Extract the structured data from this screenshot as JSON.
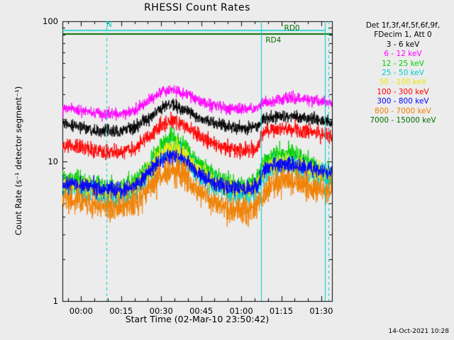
{
  "title": "RHESSI Count Rates",
  "footer": {
    "timestamp": "14-Oct-2021 10:28"
  },
  "axes": {
    "x_label": "Start Time (02-Mar-10 23:50:42)",
    "y_label": "Count Rate (s⁻¹ detector segment⁻¹)",
    "x_ticks": [
      {
        "label": "00:00",
        "t": 0
      },
      {
        "label": "00:15",
        "t": 15
      },
      {
        "label": "00:30",
        "t": 30
      },
      {
        "label": "00:45",
        "t": 45
      },
      {
        "label": "01:00",
        "t": 60
      },
      {
        "label": "01:15",
        "t": 75
      },
      {
        "label": "01:30",
        "t": 90
      }
    ],
    "y_ticks": [
      {
        "label": "1",
        "v": 1
      },
      {
        "label": "10",
        "v": 10
      },
      {
        "label": "100",
        "v": 100
      }
    ]
  },
  "legend": {
    "header": [
      "Det 1f,3f,4f,5f,6f,9f,",
      "FDecim 1, Att 0"
    ],
    "entries": [
      {
        "label": "3 - 6 keV",
        "color": "#000000"
      },
      {
        "label": "6 - 12 keV",
        "color": "#ff00ff"
      },
      {
        "label": "12 - 25 keV",
        "color": "#00d000"
      },
      {
        "label": "25 - 50 keV",
        "color": "#00cccc"
      },
      {
        "label": "50 - 100 keV",
        "color": "#e8e800"
      },
      {
        "label": "100 - 300 keV",
        "color": "#ff0000"
      },
      {
        "label": "300 - 800 keV",
        "color": "#0000ff"
      },
      {
        "label": "800 - 7000 keV",
        "color": "#f08000"
      },
      {
        "label": "7000 - 15000 keV",
        "color": "#006f00"
      }
    ]
  },
  "chart_data": {
    "type": "line",
    "title": "RHESSI Count Rates",
    "xlabel": "Start Time (02-Mar-10 23:50:42)",
    "ylabel": "Count Rate (s⁻¹ detector segment⁻¹)",
    "x_unit": "minutes relative to 00:00 UT",
    "x_range": [
      -7,
      94
    ],
    "y_range": [
      1,
      100
    ],
    "y_scale": "log",
    "grid": false,
    "legend_position": "right",
    "series": [
      {
        "name": "3 - 6 keV",
        "color": "#000000",
        "sigma": 0.05,
        "width": 1,
        "trend": [
          [
            -7,
            18.5
          ],
          [
            0,
            17.5
          ],
          [
            8,
            16.4
          ],
          [
            14,
            16.2
          ],
          [
            20,
            17.4
          ],
          [
            26,
            20.5
          ],
          [
            31,
            24.5
          ],
          [
            34,
            25.5
          ],
          [
            38,
            23.5
          ],
          [
            44,
            20.5
          ],
          [
            50,
            18.5
          ],
          [
            56,
            17.4
          ],
          [
            62,
            17.2
          ],
          [
            66,
            17.8
          ],
          [
            68.5,
            19.8
          ],
          [
            72,
            20.6
          ],
          [
            78,
            21
          ],
          [
            84,
            20.3
          ],
          [
            90,
            19.4
          ],
          [
            94,
            19
          ]
        ]
      },
      {
        "name": "6 - 12 keV",
        "color": "#ff00ff",
        "sigma": 0.045,
        "width": 1,
        "trend": [
          [
            -7,
            23.5
          ],
          [
            0,
            23
          ],
          [
            8,
            21.8
          ],
          [
            14,
            21.6
          ],
          [
            20,
            23
          ],
          [
            26,
            27.5
          ],
          [
            31,
            31.5
          ],
          [
            34,
            32.5
          ],
          [
            38,
            30.5
          ],
          [
            44,
            27.2
          ],
          [
            50,
            25
          ],
          [
            56,
            23.6
          ],
          [
            62,
            23.4
          ],
          [
            66,
            24
          ],
          [
            68.5,
            26
          ],
          [
            72,
            27.2
          ],
          [
            78,
            28.2
          ],
          [
            84,
            27.6
          ],
          [
            90,
            26.6
          ],
          [
            94,
            26.2
          ]
        ]
      },
      {
        "name": "12 - 25 keV",
        "color": "#00d000",
        "sigma": 0.075,
        "width": 1,
        "trend": [
          [
            -7,
            7.4
          ],
          [
            0,
            7.1
          ],
          [
            8,
            6.6
          ],
          [
            14,
            6.5
          ],
          [
            20,
            7
          ],
          [
            26,
            9.8
          ],
          [
            31,
            13.5
          ],
          [
            34,
            15
          ],
          [
            38,
            13.2
          ],
          [
            44,
            9.6
          ],
          [
            50,
            7.8
          ],
          [
            56,
            6.9
          ],
          [
            62,
            6.8
          ],
          [
            66,
            7.2
          ],
          [
            68.5,
            9.8
          ],
          [
            72,
            11
          ],
          [
            78,
            11.6
          ],
          [
            84,
            10.4
          ],
          [
            90,
            8.6
          ],
          [
            94,
            8.1
          ]
        ]
      },
      {
        "name": "25 - 50 keV",
        "color": "#00cccc",
        "sigma": 0.09,
        "width": 1,
        "trend": [
          [
            -7,
            6.4
          ],
          [
            0,
            6.2
          ],
          [
            8,
            5.8
          ],
          [
            14,
            5.7
          ],
          [
            20,
            6.1
          ],
          [
            26,
            8.4
          ],
          [
            31,
            11
          ],
          [
            34,
            12
          ],
          [
            38,
            10.8
          ],
          [
            44,
            8
          ],
          [
            50,
            6.6
          ],
          [
            56,
            6
          ],
          [
            62,
            5.9
          ],
          [
            66,
            6.2
          ],
          [
            68.5,
            8
          ],
          [
            72,
            8.9
          ],
          [
            78,
            9.3
          ],
          [
            84,
            8.7
          ],
          [
            90,
            7.9
          ],
          [
            94,
            7.5
          ]
        ]
      },
      {
        "name": "50 - 100 keV",
        "color": "#e8e800",
        "sigma": 0.07,
        "width": 1,
        "trend": [
          [
            -7,
            6.9
          ],
          [
            0,
            6.7
          ],
          [
            8,
            6.2
          ],
          [
            14,
            6.1
          ],
          [
            20,
            6.5
          ],
          [
            26,
            8.9
          ],
          [
            31,
            11.6
          ],
          [
            34,
            12.6
          ],
          [
            38,
            11.4
          ],
          [
            44,
            8.5
          ],
          [
            50,
            7
          ],
          [
            56,
            6.4
          ],
          [
            62,
            6.3
          ],
          [
            66,
            6.7
          ],
          [
            68.5,
            8.4
          ],
          [
            72,
            9.3
          ],
          [
            78,
            9.7
          ],
          [
            84,
            9.1
          ],
          [
            90,
            8.3
          ],
          [
            94,
            7.9
          ]
        ]
      },
      {
        "name": "100 - 300 keV",
        "color": "#ff0000",
        "sigma": 0.06,
        "width": 1,
        "trend": [
          [
            -7,
            13
          ],
          [
            0,
            12.6
          ],
          [
            8,
            11.7
          ],
          [
            14,
            11.5
          ],
          [
            20,
            12.2
          ],
          [
            26,
            15.3
          ],
          [
            31,
            18.6
          ],
          [
            34,
            19.8
          ],
          [
            38,
            18.2
          ],
          [
            44,
            15.2
          ],
          [
            50,
            13.1
          ],
          [
            56,
            12.1
          ],
          [
            62,
            11.9
          ],
          [
            66,
            12.3
          ],
          [
            68.5,
            16.2
          ],
          [
            72,
            16.9
          ],
          [
            78,
            17.1
          ],
          [
            84,
            16.4
          ],
          [
            90,
            15.7
          ],
          [
            94,
            15.4
          ]
        ]
      },
      {
        "name": "300 - 800 keV",
        "color": "#0000ff",
        "sigma": 0.065,
        "width": 1,
        "trend": [
          [
            -7,
            6.9
          ],
          [
            0,
            6.7
          ],
          [
            8,
            6.3
          ],
          [
            14,
            6.2
          ],
          [
            20,
            6.6
          ],
          [
            26,
            8.5
          ],
          [
            31,
            10.4
          ],
          [
            34,
            11
          ],
          [
            38,
            10.3
          ],
          [
            44,
            8.1
          ],
          [
            50,
            6.9
          ],
          [
            56,
            6.4
          ],
          [
            62,
            6.3
          ],
          [
            66,
            6.6
          ],
          [
            68.5,
            8.7
          ],
          [
            72,
            9.3
          ],
          [
            78,
            9.5
          ],
          [
            84,
            9.1
          ],
          [
            90,
            8.5
          ],
          [
            94,
            8.2
          ]
        ]
      },
      {
        "name": "800 - 7000 keV",
        "color": "#f08000",
        "sigma": 0.11,
        "width": 1,
        "trend": [
          [
            -7,
            5.4
          ],
          [
            0,
            5.2
          ],
          [
            8,
            4.7
          ],
          [
            14,
            4.6
          ],
          [
            20,
            4.9
          ],
          [
            26,
            6.5
          ],
          [
            31,
            8.2
          ],
          [
            34,
            8.8
          ],
          [
            38,
            8.1
          ],
          [
            44,
            6.1
          ],
          [
            50,
            5
          ],
          [
            56,
            4.5
          ],
          [
            62,
            4.35
          ],
          [
            66,
            4.7
          ],
          [
            68.5,
            6
          ],
          [
            72,
            6.9
          ],
          [
            78,
            7.3
          ],
          [
            84,
            6.8
          ],
          [
            90,
            6.3
          ],
          [
            94,
            6
          ]
        ]
      },
      {
        "name": "7000 - 15000 keV",
        "color": "#006f00",
        "sigma": 0,
        "width": 2,
        "trend": [
          [
            -7,
            81
          ],
          [
            94,
            81
          ]
        ]
      }
    ],
    "flag_lines": [
      {
        "label": "N",
        "color": "#00cccc",
        "value": 86,
        "t_start": -7,
        "t_end": 91.3,
        "width": 1.6
      }
    ],
    "event_line_color": "#00cccc",
    "event_lines": [
      {
        "t": 9.4,
        "style": "dashed"
      },
      {
        "t": 67.5,
        "style": "solid"
      },
      {
        "t": 91.3,
        "style": "solid"
      },
      {
        "t": 92.8,
        "style": "dashed"
      }
    ],
    "annotations": [
      {
        "text": "N",
        "color": "#00cccc",
        "t": 10.5,
        "value": 86,
        "side": "above"
      },
      {
        "text": "RD4",
        "color": "#006f00",
        "t": 72,
        "value": 81,
        "side": "below"
      },
      {
        "text": "RD0",
        "color": "#006f00",
        "t": 79,
        "value": 81,
        "side": "above"
      }
    ]
  }
}
